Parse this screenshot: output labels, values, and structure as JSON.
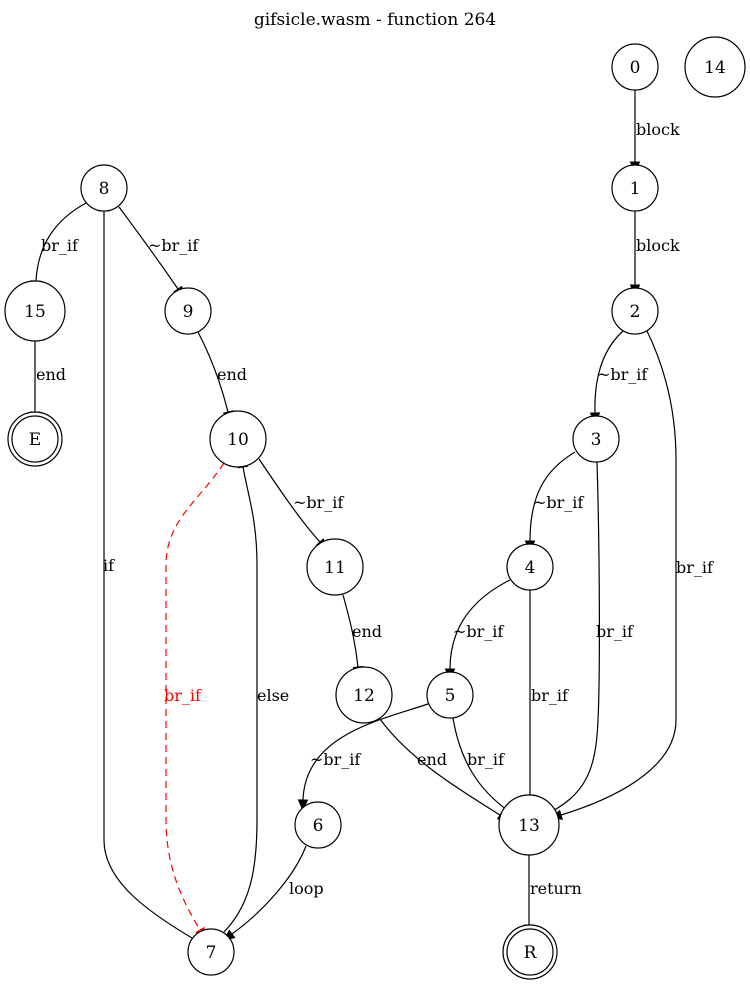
{
  "title": "gifsicle.wasm - function 264",
  "nodes": [
    {
      "id": "0",
      "label": "0"
    },
    {
      "id": "14",
      "label": "14"
    },
    {
      "id": "1",
      "label": "1"
    },
    {
      "id": "2",
      "label": "2"
    },
    {
      "id": "3",
      "label": "3"
    },
    {
      "id": "4",
      "label": "4"
    },
    {
      "id": "5",
      "label": "5"
    },
    {
      "id": "6",
      "label": "6"
    },
    {
      "id": "7",
      "label": "7"
    },
    {
      "id": "8",
      "label": "8"
    },
    {
      "id": "9",
      "label": "9"
    },
    {
      "id": "10",
      "label": "10"
    },
    {
      "id": "11",
      "label": "11"
    },
    {
      "id": "12",
      "label": "12"
    },
    {
      "id": "13",
      "label": "13"
    },
    {
      "id": "15",
      "label": "15"
    },
    {
      "id": "E",
      "label": "E",
      "terminal": true
    },
    {
      "id": "R",
      "label": "R",
      "terminal": true
    }
  ],
  "edges": [
    {
      "id": "e0-1",
      "from": "0",
      "to": "1",
      "label": "block"
    },
    {
      "id": "e1-2",
      "from": "1",
      "to": "2",
      "label": "block"
    },
    {
      "id": "e2-3",
      "from": "2",
      "to": "3",
      "label": "~br_if"
    },
    {
      "id": "e2-13",
      "from": "2",
      "to": "13",
      "label": "br_if"
    },
    {
      "id": "e3-4",
      "from": "3",
      "to": "4",
      "label": "~br_if"
    },
    {
      "id": "e3-13",
      "from": "3",
      "to": "13",
      "label": "br_if"
    },
    {
      "id": "e4-5",
      "from": "4",
      "to": "5",
      "label": "~br_if"
    },
    {
      "id": "e4-13",
      "from": "4",
      "to": "13",
      "label": "br_if"
    },
    {
      "id": "e5-6",
      "from": "5",
      "to": "6",
      "label": "~br_if"
    },
    {
      "id": "e5-13",
      "from": "5",
      "to": "13",
      "label": "br_if"
    },
    {
      "id": "e12-13",
      "from": "12",
      "to": "13",
      "label": "end"
    },
    {
      "id": "e13-R",
      "from": "13",
      "to": "R",
      "label": "return"
    },
    {
      "id": "e6-7",
      "from": "6",
      "to": "7",
      "label": "loop"
    },
    {
      "id": "e7-8",
      "from": "7",
      "to": "8",
      "label": "if"
    },
    {
      "id": "e7-10",
      "from": "7",
      "to": "10",
      "label": "else"
    },
    {
      "id": "e10-7",
      "from": "10",
      "to": "7",
      "label": "br_if",
      "color": "#ff0000",
      "dashed": true
    },
    {
      "id": "e10-11",
      "from": "10",
      "to": "11",
      "label": "~br_if"
    },
    {
      "id": "e11-12",
      "from": "11",
      "to": "12",
      "label": "end"
    },
    {
      "id": "e8-15",
      "from": "8",
      "to": "15",
      "label": "br_if"
    },
    {
      "id": "e8-9",
      "from": "8",
      "to": "9",
      "label": "~br_if"
    },
    {
      "id": "e9-10",
      "from": "9",
      "to": "10",
      "label": "end"
    },
    {
      "id": "e15-E",
      "from": "15",
      "to": "E",
      "label": "end"
    }
  ],
  "colors": {
    "default": "#000000",
    "highlight": "#ff0000",
    "background": "#ffffff"
  }
}
